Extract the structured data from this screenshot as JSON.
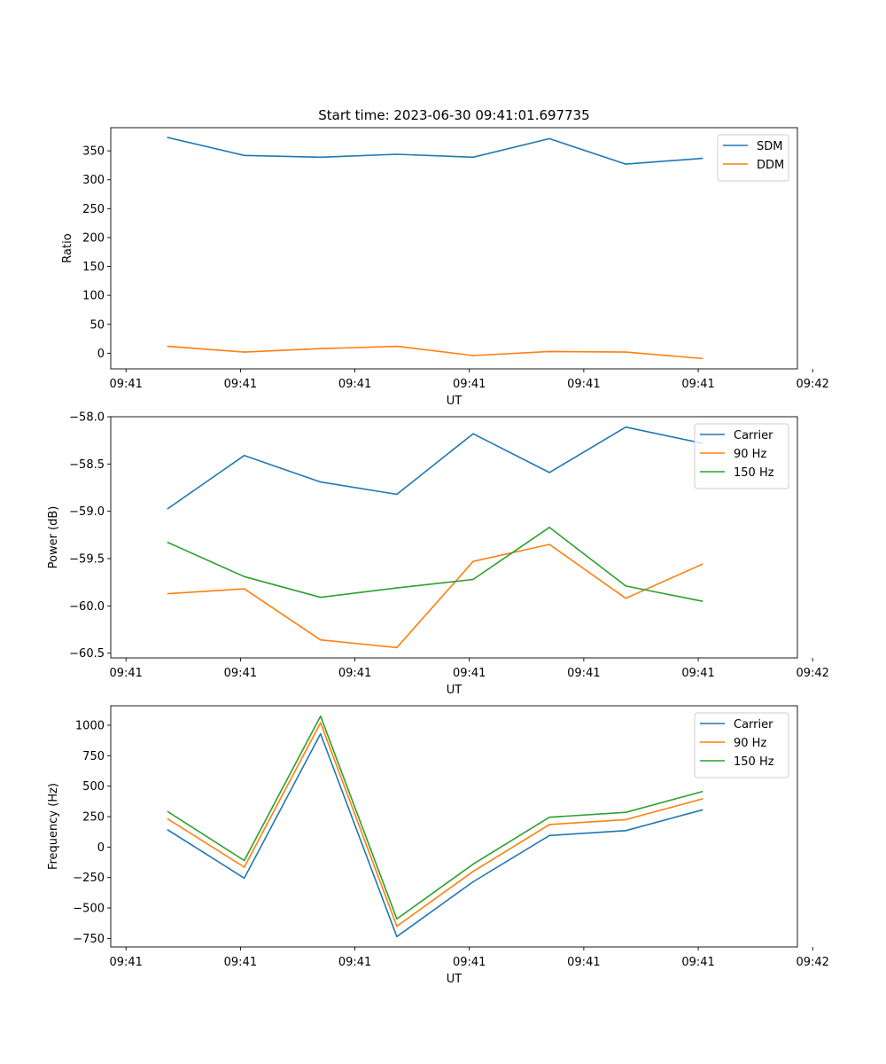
{
  "figure": {
    "title": "Start time: 2023-06-30 09:41:01.697735"
  },
  "colors": {
    "blue": "#1f77b4",
    "orange": "#ff7f0e",
    "green": "#2ca02c"
  },
  "chart_data": [
    {
      "type": "line",
      "title": "Start time: 2023-06-30 09:41:01.697735",
      "xlabel": "UT",
      "ylabel": "Ratio",
      "x": [
        1,
        2,
        3,
        4,
        5,
        6,
        7,
        8
      ],
      "xlim": [
        0.25,
        9.25
      ],
      "xticks": [
        0.45,
        1.95,
        3.45,
        4.95,
        6.45,
        7.95,
        9.45
      ],
      "xticklabels": [
        "09:41",
        "09:41",
        "09:41",
        "09:41",
        "09:41",
        "09:41",
        "09:42"
      ],
      "ylim": [
        -27,
        390
      ],
      "yticks": [
        0,
        50,
        100,
        150,
        200,
        250,
        300,
        350
      ],
      "yticklabels": [
        "0",
        "50",
        "100",
        "150",
        "200",
        "250",
        "300",
        "350"
      ],
      "legend": "top-right",
      "series": [
        {
          "name": "SDM",
          "color": "blue",
          "values": [
            373,
            342,
            339,
            344,
            339,
            371,
            327,
            337
          ]
        },
        {
          "name": "DDM",
          "color": "orange",
          "values": [
            12,
            2,
            8,
            12,
            -4,
            3,
            2,
            -9
          ]
        }
      ]
    },
    {
      "type": "line",
      "title": "",
      "xlabel": "UT",
      "ylabel": "Power (dB)",
      "x": [
        1,
        2,
        3,
        4,
        5,
        6,
        7,
        8
      ],
      "xlim": [
        0.25,
        9.25
      ],
      "xticks": [
        0.45,
        1.95,
        3.45,
        4.95,
        6.45,
        7.95,
        9.45
      ],
      "xticklabels": [
        "09:41",
        "09:41",
        "09:41",
        "09:41",
        "09:41",
        "09:41",
        "09:42"
      ],
      "ylim": [
        -60.55,
        -58.0
      ],
      "yticks": [
        -58.0,
        -58.5,
        -59.0,
        -59.5,
        -60.0,
        -60.5
      ],
      "yticklabels": [
        "−58.0",
        "−58.5",
        "−59.0",
        "−59.5",
        "−60.0",
        "−60.5"
      ],
      "legend": "top-right",
      "series": [
        {
          "name": "Carrier",
          "color": "blue",
          "values": [
            -58.97,
            -58.41,
            -58.69,
            -58.82,
            -58.18,
            -58.59,
            -58.11,
            -58.28
          ]
        },
        {
          "name": "90 Hz",
          "color": "orange",
          "values": [
            -59.87,
            -59.82,
            -60.36,
            -60.44,
            -59.53,
            -59.35,
            -59.92,
            -59.56
          ]
        },
        {
          "name": "150 Hz",
          "color": "green",
          "values": [
            -59.33,
            -59.69,
            -59.91,
            -59.81,
            -59.72,
            -59.17,
            -59.79,
            -59.95
          ]
        }
      ]
    },
    {
      "type": "line",
      "title": "",
      "xlabel": "UT",
      "ylabel": "Frequency (Hz)",
      "x": [
        1,
        2,
        3,
        4,
        5,
        6,
        7,
        8
      ],
      "xlim": [
        0.25,
        9.25
      ],
      "xticks": [
        0.45,
        1.95,
        3.45,
        4.95,
        6.45,
        7.95,
        9.45
      ],
      "xticklabels": [
        "09:41",
        "09:41",
        "09:41",
        "09:41",
        "09:41",
        "09:41",
        "09:42"
      ],
      "ylim": [
        -820,
        1160
      ],
      "yticks": [
        1000,
        750,
        500,
        250,
        0,
        -250,
        -500,
        -750
      ],
      "yticklabels": [
        "1000",
        "750",
        "500",
        "250",
        "0",
        "−250",
        "−500",
        "−750"
      ],
      "legend": "top-right",
      "series": [
        {
          "name": "Carrier",
          "color": "blue",
          "values": [
            140,
            -255,
            930,
            -735,
            -285,
            95,
            135,
            305
          ]
        },
        {
          "name": "90 Hz",
          "color": "orange",
          "values": [
            230,
            -165,
            1020,
            -650,
            -200,
            185,
            225,
            395
          ]
        },
        {
          "name": "150 Hz",
          "color": "green",
          "values": [
            290,
            -110,
            1075,
            -590,
            -140,
            245,
            285,
            455
          ]
        }
      ]
    }
  ]
}
